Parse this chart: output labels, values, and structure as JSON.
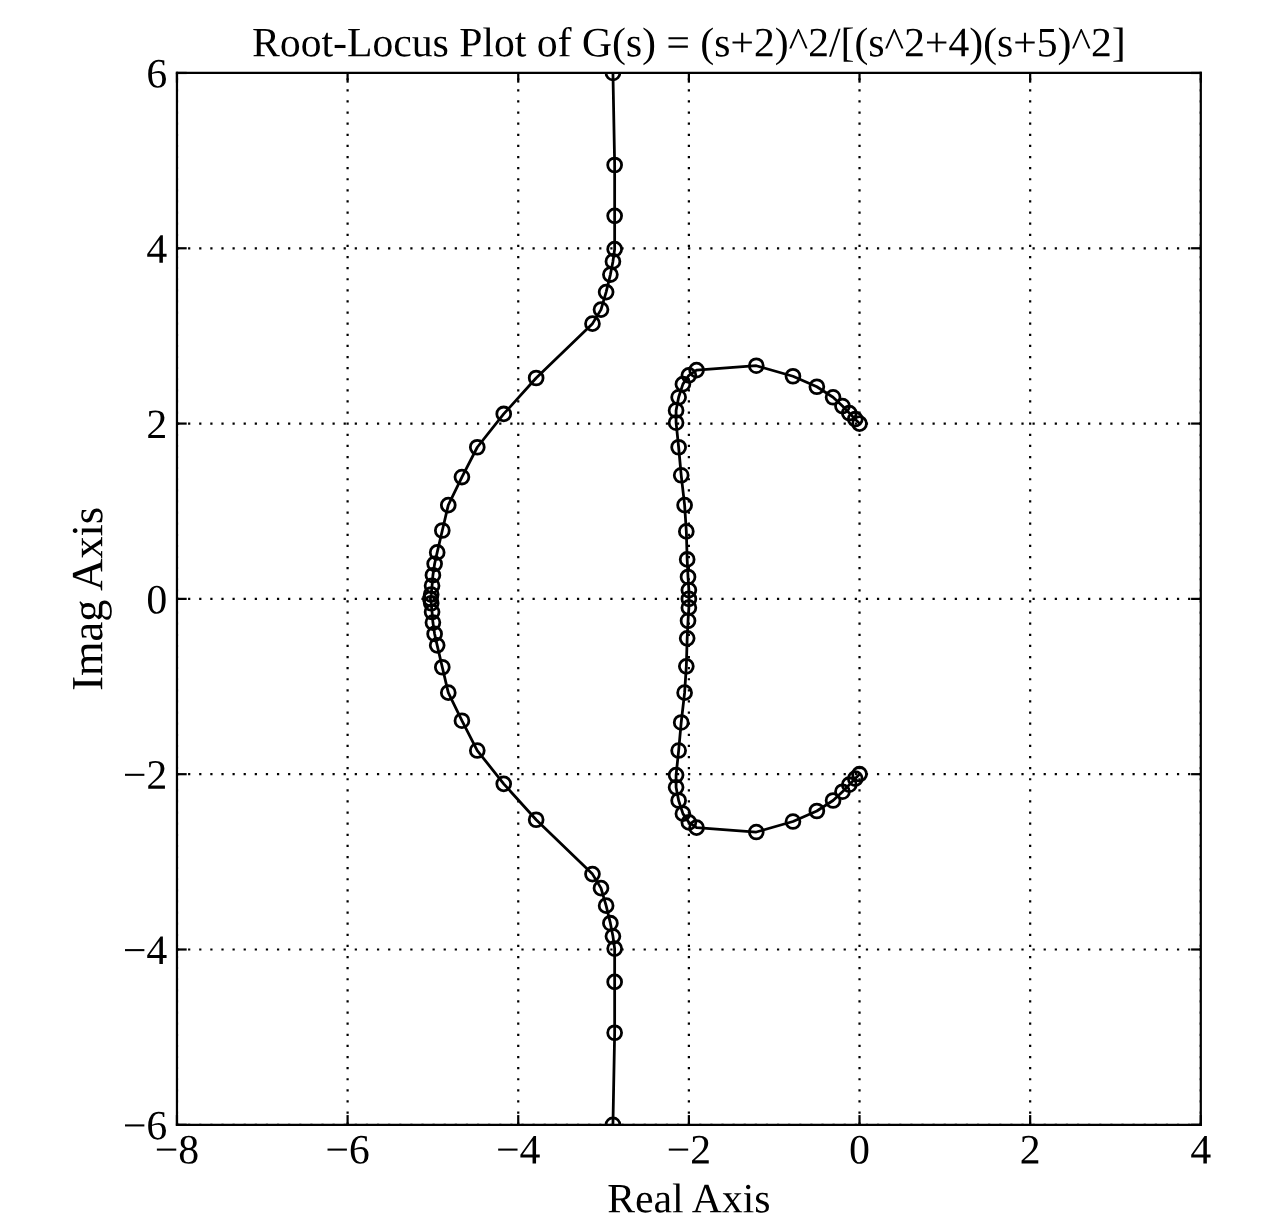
{
  "chart_data": {
    "type": "line",
    "title": "Root-Locus Plot of G(s) = (s+2)^2/[(s^2+4)(s+5)^2]",
    "xlabel": "Real Axis",
    "ylabel": "Imag Axis",
    "xlim": [
      -8,
      4
    ],
    "ylim": [
      -6,
      6
    ],
    "xticks": [
      -8,
      -6,
      -4,
      -2,
      0,
      2,
      4
    ],
    "yticks": [
      -6,
      -4,
      -2,
      0,
      2,
      4,
      6
    ],
    "grid": true,
    "marker": "circle",
    "line_style": "solid",
    "series": [
      {
        "color": "#000000",
        "x": [
          -2.89,
          -2.87,
          -2.87,
          -2.87,
          -2.89,
          -2.92,
          -2.97,
          -3.03,
          -3.13,
          -3.79,
          -4.17,
          -4.48,
          -4.66,
          -4.82,
          -4.89,
          -4.95,
          -4.98,
          -5.0,
          -5.01,
          -5.02,
          -5.03,
          -5.02,
          -5.01,
          -5.0,
          -4.98,
          -4.95,
          -4.89,
          -4.82,
          -4.66,
          -4.48,
          -4.17,
          -3.79,
          -3.13,
          -3.03,
          -2.97,
          -2.92,
          -2.89,
          -2.87,
          -2.87,
          -2.87,
          -2.89
        ],
        "values": [
          6.0,
          4.95,
          4.37,
          3.99,
          3.85,
          3.7,
          3.5,
          3.3,
          3.14,
          2.52,
          2.11,
          1.73,
          1.39,
          1.07,
          0.78,
          0.53,
          0.4,
          0.27,
          0.15,
          0.05,
          0.0,
          -0.05,
          -0.15,
          -0.27,
          -0.4,
          -0.53,
          -0.78,
          -1.07,
          -1.39,
          -1.73,
          -2.11,
          -2.52,
          -3.14,
          -3.3,
          -3.5,
          -3.7,
          -3.85,
          -3.99,
          -4.37,
          -4.95,
          -6.0
        ]
      },
      {
        "color": "#000000",
        "x": [
          0.0,
          -0.05,
          -0.12,
          -0.2,
          -0.31,
          -0.5,
          -0.78,
          -1.21,
          -1.91,
          -2.0,
          -2.07,
          -2.12,
          -2.15,
          -2.15,
          -2.12,
          -2.09,
          -2.05,
          -2.03,
          -2.02,
          -2.01,
          -2.0,
          -2.0,
          -2.0,
          -2.01,
          -2.02,
          -2.03,
          -2.05,
          -2.09,
          -2.12,
          -2.15,
          -2.15,
          -2.12,
          -2.07,
          -2.0,
          -1.91,
          -1.21,
          -0.78,
          -0.5,
          -0.31,
          -0.2,
          -0.12,
          -0.05,
          0.0
        ],
        "values": [
          2.0,
          2.05,
          2.12,
          2.2,
          2.3,
          2.42,
          2.54,
          2.66,
          2.61,
          2.55,
          2.45,
          2.3,
          2.15,
          2.01,
          1.73,
          1.41,
          1.07,
          0.77,
          0.45,
          0.25,
          0.1,
          0.0,
          -0.1,
          -0.25,
          -0.45,
          -0.77,
          -1.07,
          -1.41,
          -1.73,
          -2.01,
          -2.15,
          -2.3,
          -2.45,
          -2.55,
          -2.61,
          -2.66,
          -2.54,
          -2.42,
          -2.3,
          -2.2,
          -2.12,
          -2.05,
          -2.0
        ]
      }
    ]
  }
}
